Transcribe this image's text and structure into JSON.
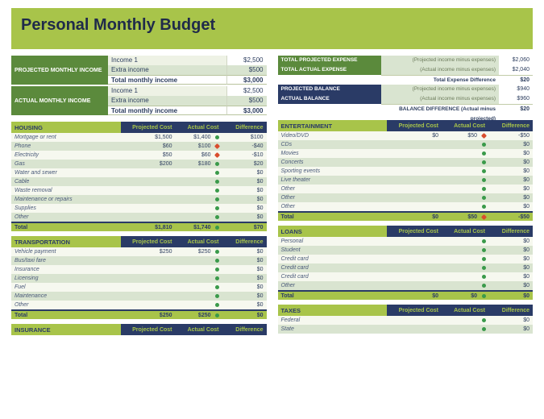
{
  "title": "Personal Monthly Budget",
  "income": {
    "projected": {
      "label": "PROJECTED MONTHLY INCOME",
      "rows": [
        {
          "name": "Income 1",
          "val": "$2,500"
        },
        {
          "name": "Extra income",
          "val": "$500"
        }
      ],
      "total_label": "Total monthly income",
      "total": "$3,000"
    },
    "actual": {
      "label": "ACTUAL MONTHLY INCOME",
      "rows": [
        {
          "name": "Income 1",
          "val": "$2,500"
        },
        {
          "name": "Extra income",
          "val": "$500"
        }
      ],
      "total_label": "Total monthly income",
      "total": "$3,000"
    }
  },
  "summary": [
    {
      "label": "TOTAL PROJECTED EXPENSE",
      "desc": "(Projected income minus expenses)",
      "val": "$2,060",
      "navy": false
    },
    {
      "label": "TOTAL ACTUAL EXPENSE",
      "desc": "(Actual income minus expenses)",
      "val": "$2,040",
      "navy": false
    },
    {
      "label": "",
      "desc": "Total Expense Difference",
      "val": "$20",
      "navy": false,
      "tot": true
    },
    {
      "label": "PROJECTED BALANCE",
      "desc": "(Projected income minus expenses)",
      "val": "$940",
      "navy": true
    },
    {
      "label": "ACTUAL BALANCE",
      "desc": "(Actual income minus expenses)",
      "val": "$960",
      "navy": true
    },
    {
      "label": "",
      "desc": "BALANCE DIFFERENCE (Actual minus projected)",
      "val": "$20",
      "navy": false,
      "tot": true
    }
  ],
  "head": {
    "proj": "Projected Cost",
    "act": "Actual Cost",
    "diff": "Difference",
    "total": "Total"
  },
  "left_cats": [
    {
      "title": "HOUSING",
      "rows": [
        {
          "n": "Mortgage or rent",
          "p": "$1,500",
          "a": "$1,400",
          "d": "$100",
          "dot": "green"
        },
        {
          "n": "Phone",
          "p": "$60",
          "a": "$100",
          "d": "-$40",
          "dot": "red"
        },
        {
          "n": "Electricity",
          "p": "$50",
          "a": "$60",
          "d": "-$10",
          "dot": "red"
        },
        {
          "n": "Gas",
          "p": "$200",
          "a": "$180",
          "d": "$20",
          "dot": "green"
        },
        {
          "n": "Water and sewer",
          "p": "",
          "a": "",
          "d": "$0",
          "dot": "green"
        },
        {
          "n": "Cable",
          "p": "",
          "a": "",
          "d": "$0",
          "dot": "green"
        },
        {
          "n": "Waste removal",
          "p": "",
          "a": "",
          "d": "$0",
          "dot": "green"
        },
        {
          "n": "Maintenance or repairs",
          "p": "",
          "a": "",
          "d": "$0",
          "dot": "green"
        },
        {
          "n": "Supplies",
          "p": "",
          "a": "",
          "d": "$0",
          "dot": "green"
        },
        {
          "n": "Other",
          "p": "",
          "a": "",
          "d": "$0",
          "dot": "green"
        }
      ],
      "tp": "$1,810",
      "ta": "$1,740",
      "td": "$70",
      "tdot": "green"
    },
    {
      "title": "TRANSPORTATION",
      "rows": [
        {
          "n": "Vehicle payment",
          "p": "$250",
          "a": "$250",
          "d": "$0",
          "dot": "green"
        },
        {
          "n": "Bus/taxi fare",
          "p": "",
          "a": "",
          "d": "$0",
          "dot": "green"
        },
        {
          "n": "Insurance",
          "p": "",
          "a": "",
          "d": "$0",
          "dot": "green"
        },
        {
          "n": "Licensing",
          "p": "",
          "a": "",
          "d": "$0",
          "dot": "green"
        },
        {
          "n": "Fuel",
          "p": "",
          "a": "",
          "d": "$0",
          "dot": "green"
        },
        {
          "n": "Maintenance",
          "p": "",
          "a": "",
          "d": "$0",
          "dot": "green"
        },
        {
          "n": "Other",
          "p": "",
          "a": "",
          "d": "$0",
          "dot": "green"
        }
      ],
      "tp": "$250",
      "ta": "$250",
      "td": "$0",
      "tdot": "green"
    },
    {
      "title": "INSURANCE",
      "rows": [],
      "noTotal": true
    }
  ],
  "right_cats": [
    {
      "title": "ENTERTAINMENT",
      "rows": [
        {
          "n": "Video/DVD",
          "p": "$0",
          "a": "$50",
          "d": "-$50",
          "dot": "red"
        },
        {
          "n": "CDs",
          "p": "",
          "a": "",
          "d": "$0",
          "dot": "green"
        },
        {
          "n": "Movies",
          "p": "",
          "a": "",
          "d": "$0",
          "dot": "green"
        },
        {
          "n": "Concerts",
          "p": "",
          "a": "",
          "d": "$0",
          "dot": "green"
        },
        {
          "n": "Sporting events",
          "p": "",
          "a": "",
          "d": "$0",
          "dot": "green"
        },
        {
          "n": "Live theater",
          "p": "",
          "a": "",
          "d": "$0",
          "dot": "green"
        },
        {
          "n": "Other",
          "p": "",
          "a": "",
          "d": "$0",
          "dot": "green"
        },
        {
          "n": "Other",
          "p": "",
          "a": "",
          "d": "$0",
          "dot": "green"
        },
        {
          "n": "Other",
          "p": "",
          "a": "",
          "d": "$0",
          "dot": "green"
        }
      ],
      "tp": "$0",
      "ta": "$50",
      "td": "-$50",
      "tdot": "red"
    },
    {
      "title": "LOANS",
      "rows": [
        {
          "n": "Personal",
          "p": "",
          "a": "",
          "d": "$0",
          "dot": "green"
        },
        {
          "n": "Student",
          "p": "",
          "a": "",
          "d": "$0",
          "dot": "green"
        },
        {
          "n": "Credit card",
          "p": "",
          "a": "",
          "d": "$0",
          "dot": "green"
        },
        {
          "n": "Credit card",
          "p": "",
          "a": "",
          "d": "$0",
          "dot": "green"
        },
        {
          "n": "Credit card",
          "p": "",
          "a": "",
          "d": "$0",
          "dot": "green"
        },
        {
          "n": "Other",
          "p": "",
          "a": "",
          "d": "$0",
          "dot": "green"
        }
      ],
      "tp": "$0",
      "ta": "$0",
      "td": "$0",
      "tdot": "green"
    },
    {
      "title": "TAXES",
      "rows": [
        {
          "n": "Federal",
          "p": "",
          "a": "",
          "d": "$0",
          "dot": "green"
        },
        {
          "n": "State",
          "p": "",
          "a": "",
          "d": "$0",
          "dot": "green"
        }
      ],
      "noTotal": true
    }
  ]
}
